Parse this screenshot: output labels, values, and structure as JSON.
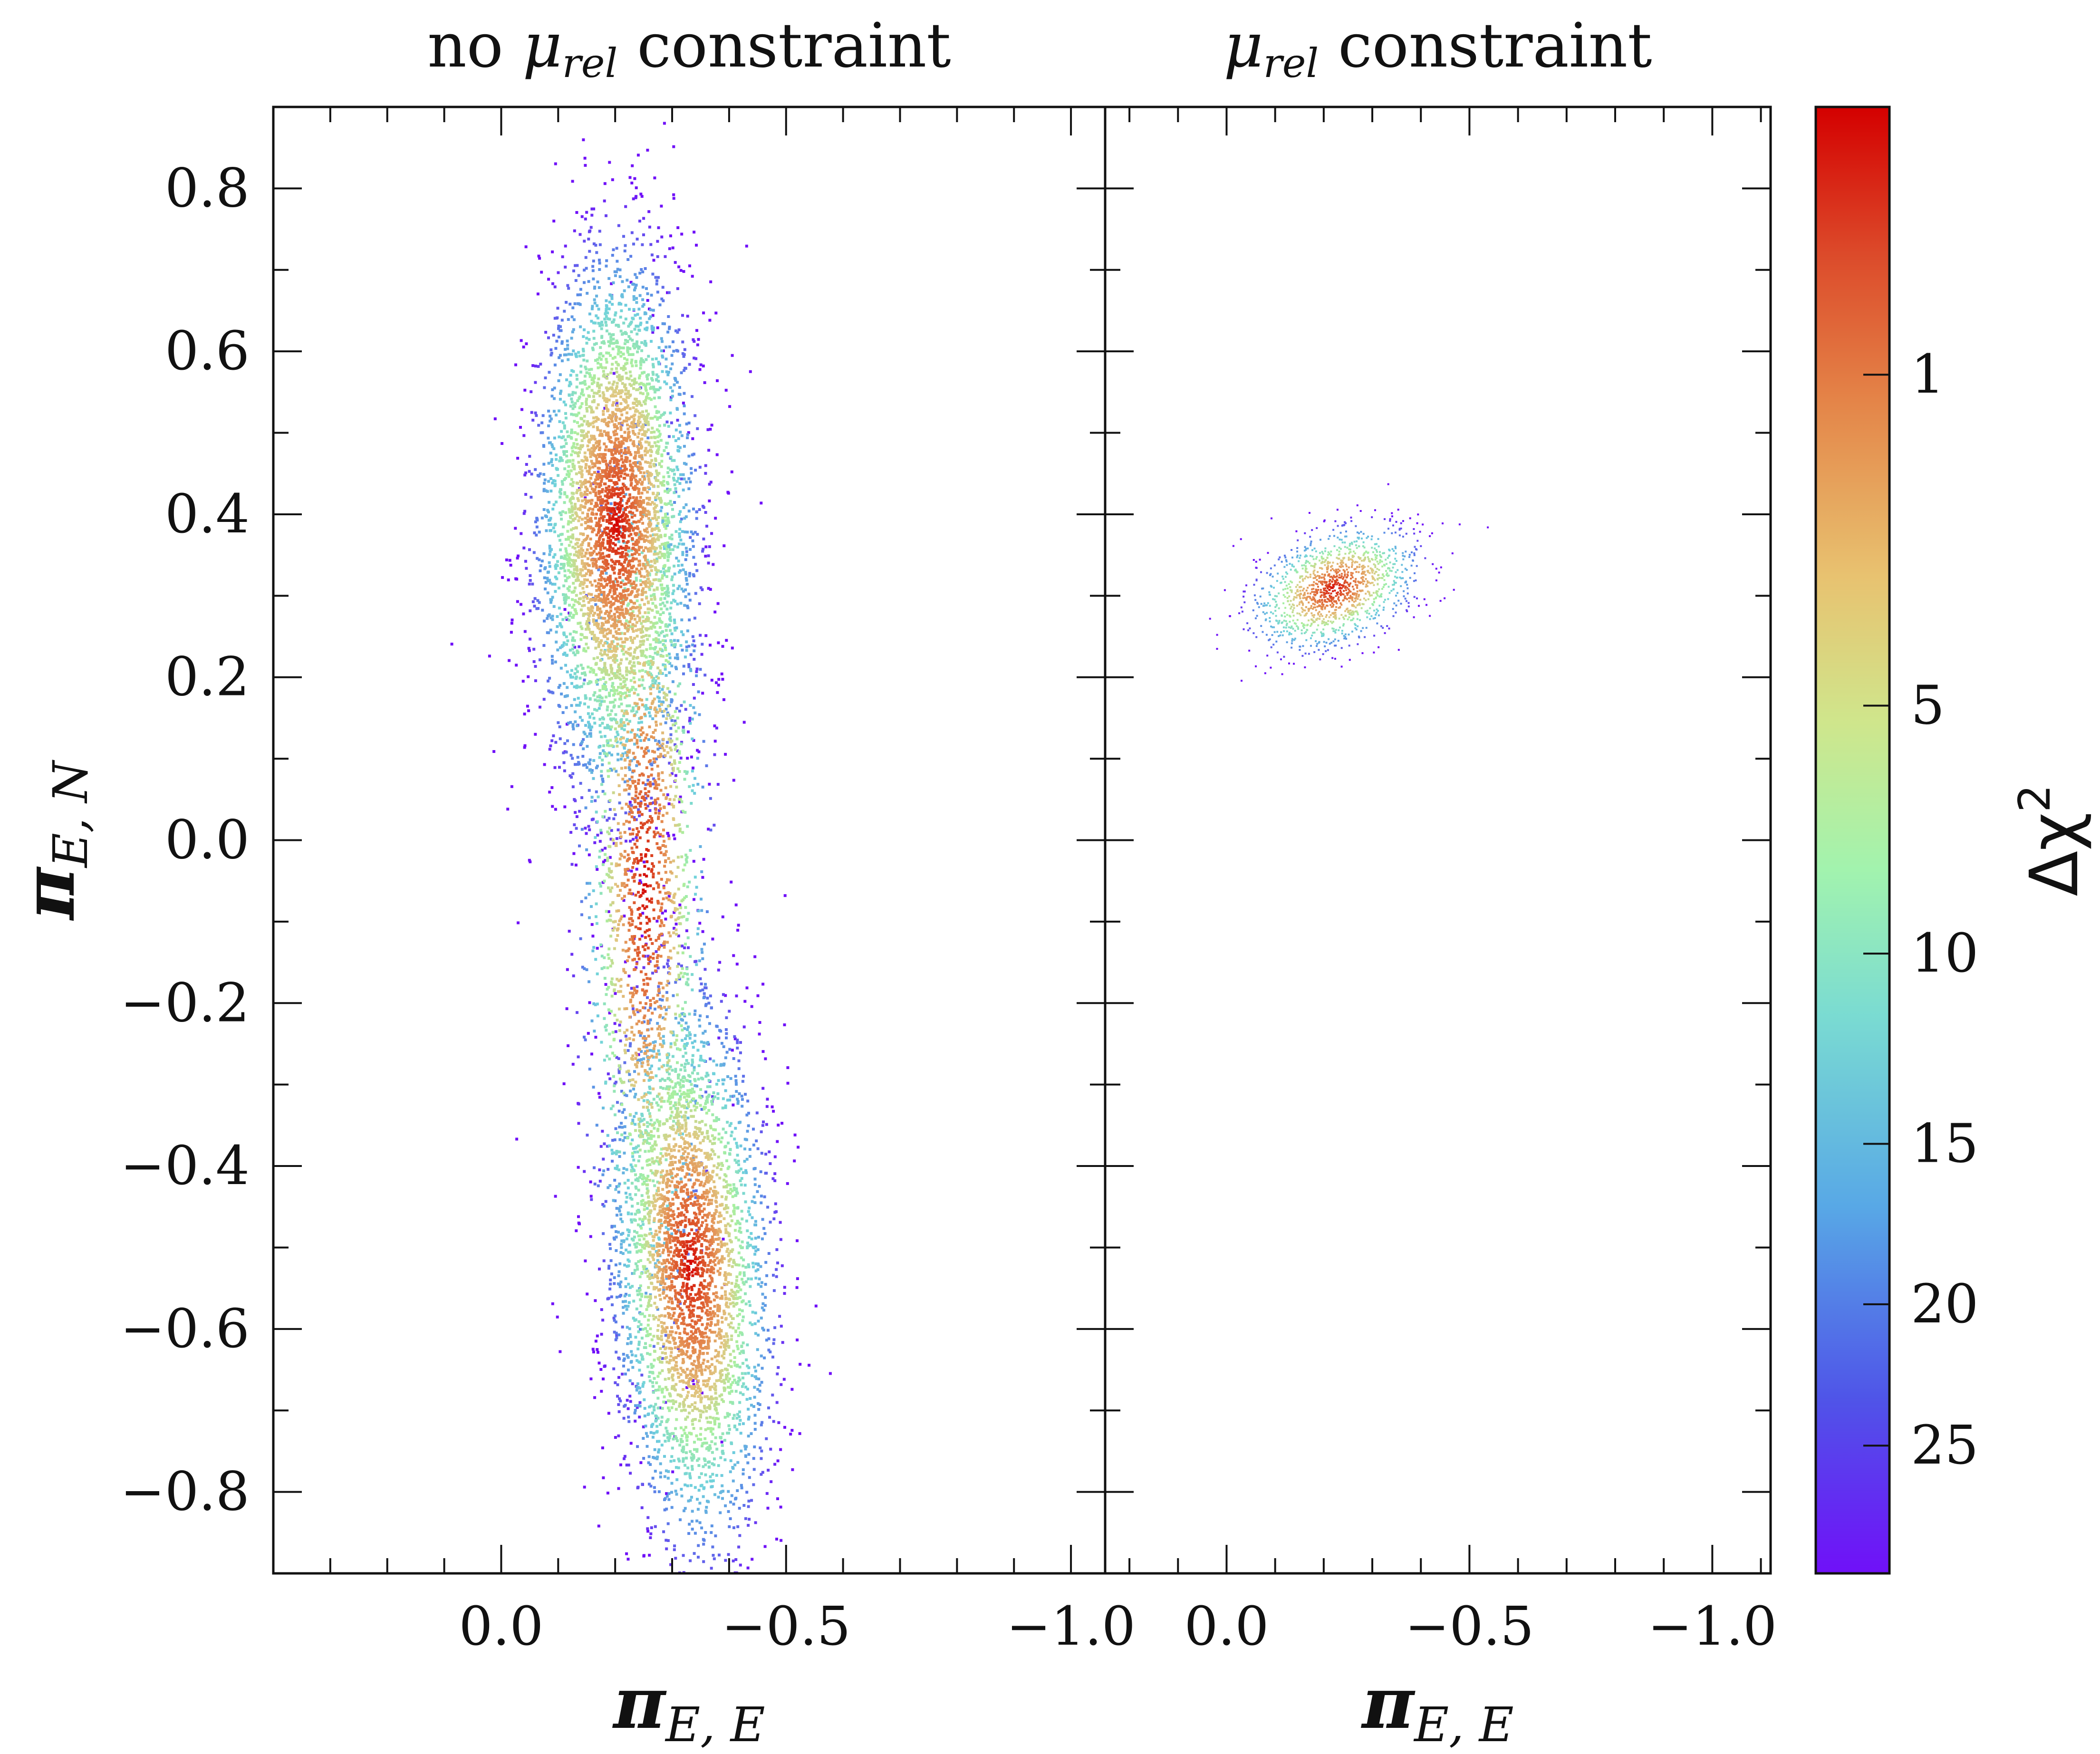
{
  "chart_data": {
    "type": "scatter",
    "panels": [
      {
        "title_prefix": "no ",
        "title_symbol": "μ",
        "title_subscript": "rel",
        "title_suffix": " constraint",
        "xlabel_base": "π",
        "xlabel_subscript": "E, E",
        "ylabel_base": "π",
        "ylabel_subscript": "E, N",
        "xlim": [
          0.4,
          -1.06
        ],
        "ylim": [
          -0.9,
          0.9
        ],
        "xticks": [
          0.0,
          -0.5,
          -1.0
        ],
        "xtick_labels": [
          "0.0",
          "−0.5",
          "−1.0"
        ],
        "yticks": [
          -0.8,
          -0.6,
          -0.4,
          -0.2,
          0.0,
          0.2,
          0.4,
          0.6,
          0.8
        ],
        "ytick_labels": [
          "−0.8",
          "−0.6",
          "−0.4",
          "−0.2",
          "0.0",
          "0.2",
          "0.4",
          "0.6",
          "0.8"
        ],
        "clusters": [
          {
            "name": "northern minimum",
            "center_x": -0.2,
            "center_y": 0.39,
            "sigma_x": 0.05,
            "sigma_y": 0.12,
            "tilt": 0.0
          },
          {
            "name": "southern minimum",
            "center_x": -0.33,
            "center_y": -0.52,
            "sigma_x": 0.05,
            "sigma_y": 0.12,
            "tilt": -0.35
          },
          {
            "name": "bridge",
            "center_x": -0.25,
            "center_y": -0.05,
            "sigma_x": 0.04,
            "sigma_y": 0.2,
            "tilt": -0.1
          }
        ],
        "best_fit": {
          "x": -0.2,
          "y": 0.39
        }
      },
      {
        "title_prefix": "",
        "title_symbol": "μ",
        "title_subscript": "rel",
        "title_suffix": " constraint",
        "xlabel_base": "π",
        "xlabel_subscript": "E, E",
        "xlim": [
          0.25,
          -1.12
        ],
        "ylim": [
          -0.9,
          0.9
        ],
        "xticks": [
          0.0,
          -0.5,
          -1.0
        ],
        "xtick_labels": [
          "0.0",
          "−0.5",
          "−1.0"
        ],
        "yticks": [
          -0.8,
          -0.6,
          -0.4,
          -0.2,
          0.0,
          0.2,
          0.4,
          0.6,
          0.8
        ],
        "clusters": [
          {
            "name": "constrained minimum",
            "center_x": -0.22,
            "center_y": 0.31,
            "sigma_x": 0.06,
            "sigma_y": 0.025,
            "tilt": 0.75
          }
        ],
        "best_fit": {
          "x": -0.22,
          "y": 0.31
        }
      }
    ],
    "colorbar": {
      "label_base": "Δχ",
      "label_superscript": "2",
      "range": [
        0,
        30
      ],
      "ticks": [
        1,
        5,
        10,
        15,
        20,
        25
      ],
      "tick_labels": [
        "1",
        "5",
        "10",
        "15",
        "20",
        "25"
      ],
      "scale": "sqrt",
      "colormap": "rainbow (red = low Δχ², violet = high Δχ²)"
    }
  },
  "colors": {
    "red": "#d40000",
    "orange": "#e48a4a",
    "yellow": "#dfd68a",
    "green": "#a8f0a4",
    "cyan": "#6fcde0",
    "blue": "#5a78e6",
    "violet": "#6f10f0"
  }
}
